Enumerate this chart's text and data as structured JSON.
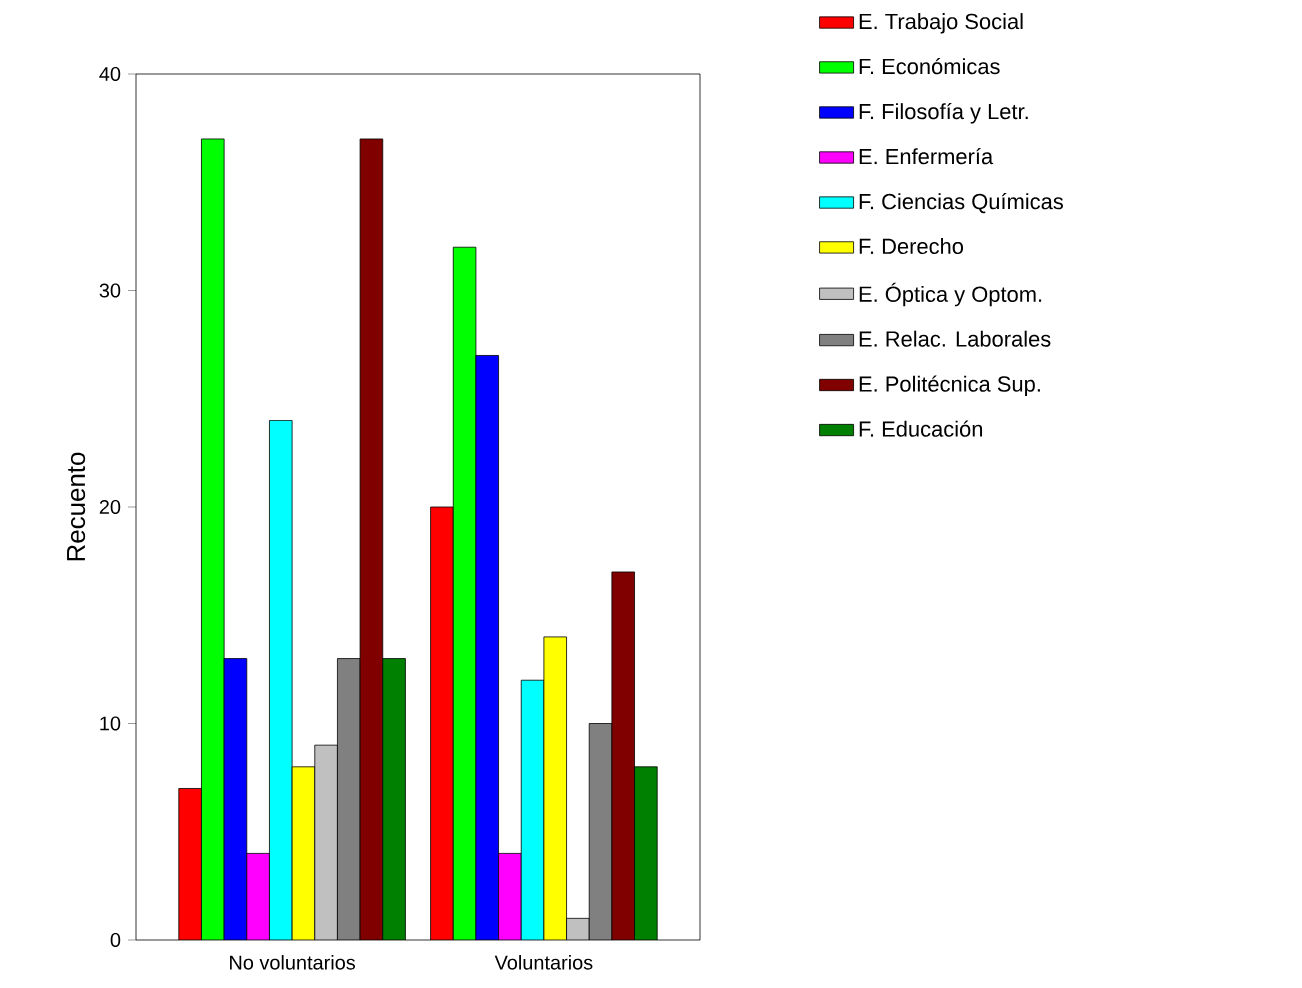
{
  "chart_data": {
    "type": "bar",
    "ylabel": "Recuento",
    "categories": [
      "No voluntarios",
      "Voluntarios"
    ],
    "ylim": [
      0,
      40
    ],
    "yticks": [
      0,
      10,
      20,
      30,
      40
    ],
    "legend": "right",
    "grid": false,
    "series": [
      {
        "name": "E. Trabajo Social",
        "color": "#ff0000",
        "values": [
          7,
          20
        ]
      },
      {
        "name": "F. Económicas",
        "color": "#00ff00",
        "values": [
          37,
          32
        ]
      },
      {
        "name": "F. Filosofía y Letr.",
        "color": "#0000ff",
        "values": [
          13,
          27
        ]
      },
      {
        "name": "E. Enfermería",
        "color": "#ff00ff",
        "values": [
          4,
          4
        ]
      },
      {
        "name": "F. Ciencias Químicas",
        "color": "#00ffff",
        "values": [
          24,
          12
        ]
      },
      {
        "name": "F. Derecho",
        "color": "#ffff00",
        "values": [
          8,
          14
        ]
      },
      {
        "name": "E. Óptica y Optom.",
        "color": "#c0c0c0",
        "values": [
          9,
          1
        ]
      },
      {
        "name": "E. Relac. Laborales",
        "color": "#808080",
        "values": [
          13,
          10
        ]
      },
      {
        "name": "E. Politécnica Sup.",
        "color": "#800000",
        "values": [
          37,
          17
        ]
      },
      {
        "name": "F. Educación",
        "color": "#008000",
        "values": [
          13,
          8
        ]
      }
    ]
  }
}
